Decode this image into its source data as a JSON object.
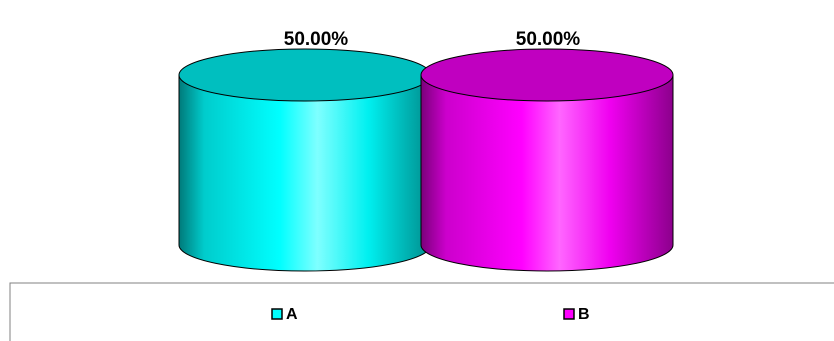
{
  "chart_data": {
    "type": "bar",
    "style": "3d-cylinder",
    "categories": [
      "A",
      "B"
    ],
    "values": [
      50.0,
      50.0
    ],
    "data_labels": [
      "50.00%",
      "50.00%"
    ],
    "colors": [
      "#00FFFF",
      "#FF00FF"
    ],
    "legend": {
      "position": "bottom",
      "entries": [
        {
          "label": "A",
          "color": "#00FFFF"
        },
        {
          "label": "B",
          "color": "#FF00FF"
        }
      ]
    },
    "title": "",
    "xlabel": "",
    "ylabel": "",
    "grid": false
  }
}
